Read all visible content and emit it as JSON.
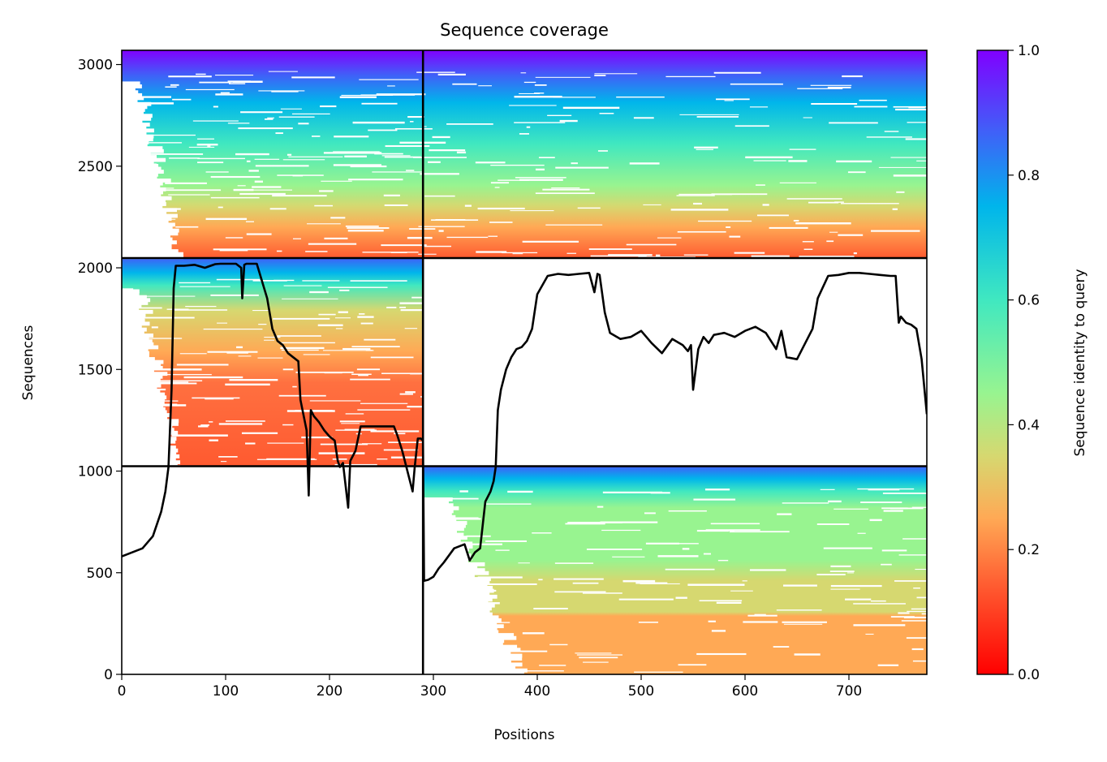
{
  "chart_data": {
    "type": "heatmap",
    "title": "Sequence coverage",
    "xlabel": "Positions",
    "ylabel": "Sequences",
    "xlim": [
      0,
      775
    ],
    "ylim": [
      0,
      3070
    ],
    "xticks": [
      0,
      100,
      200,
      300,
      400,
      500,
      600,
      700
    ],
    "yticks": [
      0,
      500,
      1000,
      1500,
      2000,
      2500,
      3000
    ],
    "colorbar": {
      "label": "Sequence identity to query",
      "range": [
        0,
        1
      ],
      "ticks": [
        "0.0",
        "0.2",
        "0.4",
        "0.6",
        "0.8",
        "1.0"
      ],
      "colormap": [
        "#ff0000",
        "#ff8040",
        "#d6d870",
        "#98f490",
        "#40e8c0",
        "#00b5eb",
        "#4060f8",
        "#8000ff"
      ]
    },
    "chain_boundaries": {
      "x": [
        290
      ],
      "y": [
        1024,
        2048
      ]
    },
    "blocks": [
      {
        "x": [
          0,
          290
        ],
        "y": [
          2048,
          3070
        ],
        "identity_top": 1.0,
        "identity_bottom": 0.15,
        "white_start_x": 50
      },
      {
        "x": [
          290,
          775
        ],
        "y": [
          2048,
          3070
        ],
        "identity_top": 1.0,
        "identity_bottom": 0.18,
        "white_start_x": 0
      },
      {
        "x": [
          0,
          290
        ],
        "y": [
          1024,
          2048
        ],
        "identity_top": 0.85,
        "identity_bottom": 0.12,
        "white_start_x": 50
      },
      {
        "x": [
          290,
          775
        ],
        "y": [
          0,
          1024
        ],
        "identity_top": 0.85,
        "identity_bottom": 0.2,
        "white_start_x": 380
      }
    ],
    "series": [
      {
        "type": "line",
        "x": [
          0,
          5,
          10,
          20,
          30,
          38,
          42,
          45,
          48,
          50,
          52,
          55,
          60,
          70,
          80,
          90,
          95,
          100,
          110,
          115,
          116,
          118,
          120,
          130,
          140,
          145,
          150,
          155,
          160,
          170,
          172,
          178,
          180,
          182,
          185,
          190,
          195,
          200,
          205,
          208,
          210,
          213,
          215,
          218,
          220,
          225,
          230,
          235,
          240,
          250,
          260,
          262,
          265,
          270,
          275,
          280,
          282,
          285,
          288,
          290,
          291,
          295,
          300,
          305,
          310,
          320,
          325,
          330,
          335,
          340,
          345,
          350,
          355,
          358,
          360,
          362,
          365,
          370,
          375,
          380,
          385,
          390,
          395,
          400,
          410,
          420,
          430,
          440,
          450,
          455,
          458,
          460,
          465,
          470,
          480,
          490,
          500,
          510,
          520,
          530,
          540,
          545,
          548,
          550,
          555,
          560,
          565,
          570,
          580,
          590,
          600,
          610,
          620,
          630,
          635,
          640,
          650,
          655,
          660,
          665,
          670,
          680,
          690,
          700,
          710,
          720,
          730,
          740,
          745,
          748,
          750,
          755,
          760,
          765,
          770,
          775
        ],
        "y": [
          580,
          590,
          600,
          620,
          680,
          800,
          900,
          1020,
          1400,
          1900,
          2010,
          2010,
          2010,
          2015,
          2000,
          2018,
          2020,
          2020,
          2020,
          2000,
          1850,
          2015,
          2020,
          2020,
          1850,
          1700,
          1640,
          1620,
          1580,
          1540,
          1350,
          1200,
          880,
          1300,
          1270,
          1240,
          1200,
          1170,
          1150,
          1050,
          1020,
          1040,
          950,
          820,
          1050,
          1100,
          1220,
          1220,
          1220,
          1220,
          1220,
          1220,
          1180,
          1100,
          1000,
          900,
          1020,
          1160,
          1160,
          1150,
          460,
          465,
          480,
          520,
          550,
          620,
          630,
          640,
          560,
          600,
          620,
          850,
          900,
          950,
          1020,
          1300,
          1400,
          1500,
          1560,
          1600,
          1610,
          1640,
          1700,
          1870,
          1960,
          1970,
          1965,
          1970,
          1975,
          1880,
          1970,
          1965,
          1780,
          1680,
          1650,
          1660,
          1690,
          1630,
          1580,
          1650,
          1620,
          1590,
          1620,
          1400,
          1600,
          1660,
          1630,
          1670,
          1680,
          1660,
          1690,
          1710,
          1680,
          1600,
          1690,
          1560,
          1550,
          1600,
          1650,
          1700,
          1850,
          1960,
          1965,
          1975,
          1975,
          1970,
          1965,
          1960,
          1960,
          1730,
          1760,
          1730,
          1720,
          1700,
          1550,
          1280
        ]
      }
    ]
  }
}
